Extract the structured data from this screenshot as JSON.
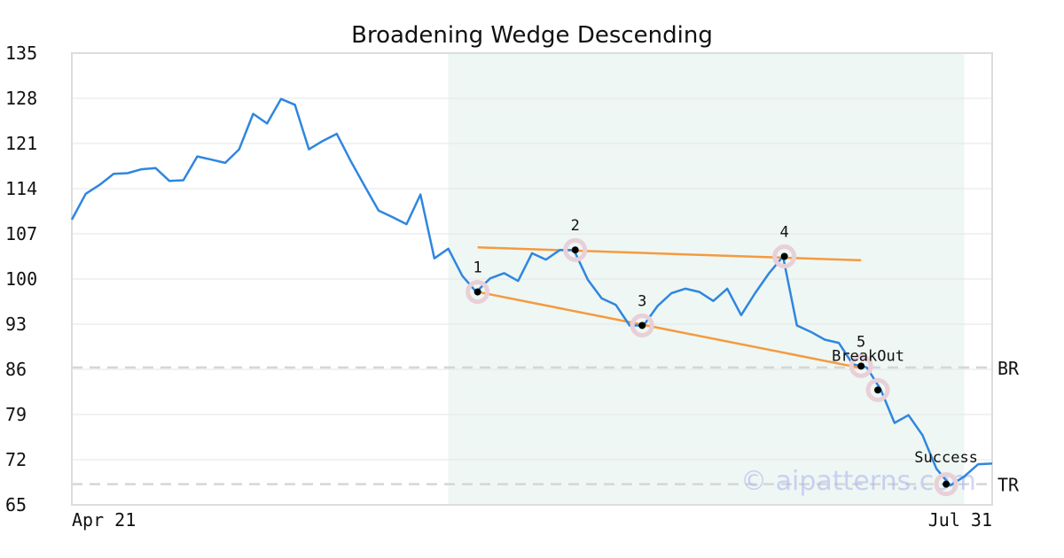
{
  "chart_data": {
    "type": "line",
    "title": "Broadening Wedge Descending",
    "xlabel": "",
    "ylabel": "",
    "y_ticks": [
      "135",
      "128",
      "121",
      "114",
      "107",
      "100",
      "93",
      "86",
      "79",
      "72",
      "65"
    ],
    "ylim": [
      65,
      135
    ],
    "x_tick_labels": [
      "Apr 21",
      "Jul 31"
    ],
    "grid": "horizontal",
    "series": [
      {
        "color": "#2f86e0",
        "values": [
          109.2,
          113.2,
          114.6,
          116.3,
          116.4,
          117.0,
          117.2,
          115.2,
          115.3,
          119.0,
          118.5,
          118.0,
          120.1,
          125.6,
          124.1,
          127.9,
          127.0,
          120.1,
          121.4,
          122.5,
          118.3,
          114.4,
          110.6,
          109.6,
          108.5,
          113.1,
          103.2,
          104.7,
          100.5,
          98.0,
          100.1,
          100.9,
          99.7,
          104.0,
          103.0,
          104.5,
          104.5,
          99.9,
          97.0,
          96.0,
          92.8,
          92.8,
          95.8,
          97.8,
          98.5,
          98.0,
          96.6,
          98.5,
          94.4,
          97.8,
          100.9,
          103.5,
          92.8,
          91.8,
          90.6,
          90.1,
          86.8,
          86.3,
          82.9,
          77.7,
          78.9,
          75.8,
          70.6,
          68.0,
          69.4,
          71.3,
          71.4
        ]
      }
    ],
    "shaded_region": {
      "from_index": 27,
      "to_index": 64,
      "color": "#eef7f3"
    },
    "trendlines": [
      {
        "name": "upper",
        "color": "#f59a40",
        "x": [
          29.1,
          56.6
        ],
        "y": [
          104.9,
          102.9
        ]
      },
      {
        "name": "lower",
        "color": "#f59a40",
        "x": [
          29.1,
          56.6
        ],
        "y": [
          98.0,
          86.2
        ]
      }
    ],
    "points": [
      {
        "label": "1",
        "index": 29.1,
        "value": 98.0
      },
      {
        "label": "2",
        "index": 36.1,
        "value": 104.5
      },
      {
        "label": "3",
        "index": 40.9,
        "value": 92.8
      },
      {
        "label": "4",
        "index": 51.1,
        "value": 103.5
      },
      {
        "label": "5",
        "index": 56.6,
        "value": 86.5
      },
      {
        "label": "",
        "index": 57.8,
        "value": 82.8
      },
      {
        "label": "",
        "index": 62.7,
        "value": 68.2
      }
    ],
    "annotations": [
      {
        "text": "BreakOut",
        "index": 57.1,
        "value": 87.0
      },
      {
        "text": "Success",
        "index": 62.7,
        "value": 71.3
      }
    ],
    "reference_lines": [
      {
        "label": "BR",
        "value": 86.3,
        "color": "#d6d6d6"
      },
      {
        "label": "TR",
        "value": 68.2,
        "color": "#d6d6d6"
      }
    ],
    "watermark": "© aipatterns.com"
  }
}
